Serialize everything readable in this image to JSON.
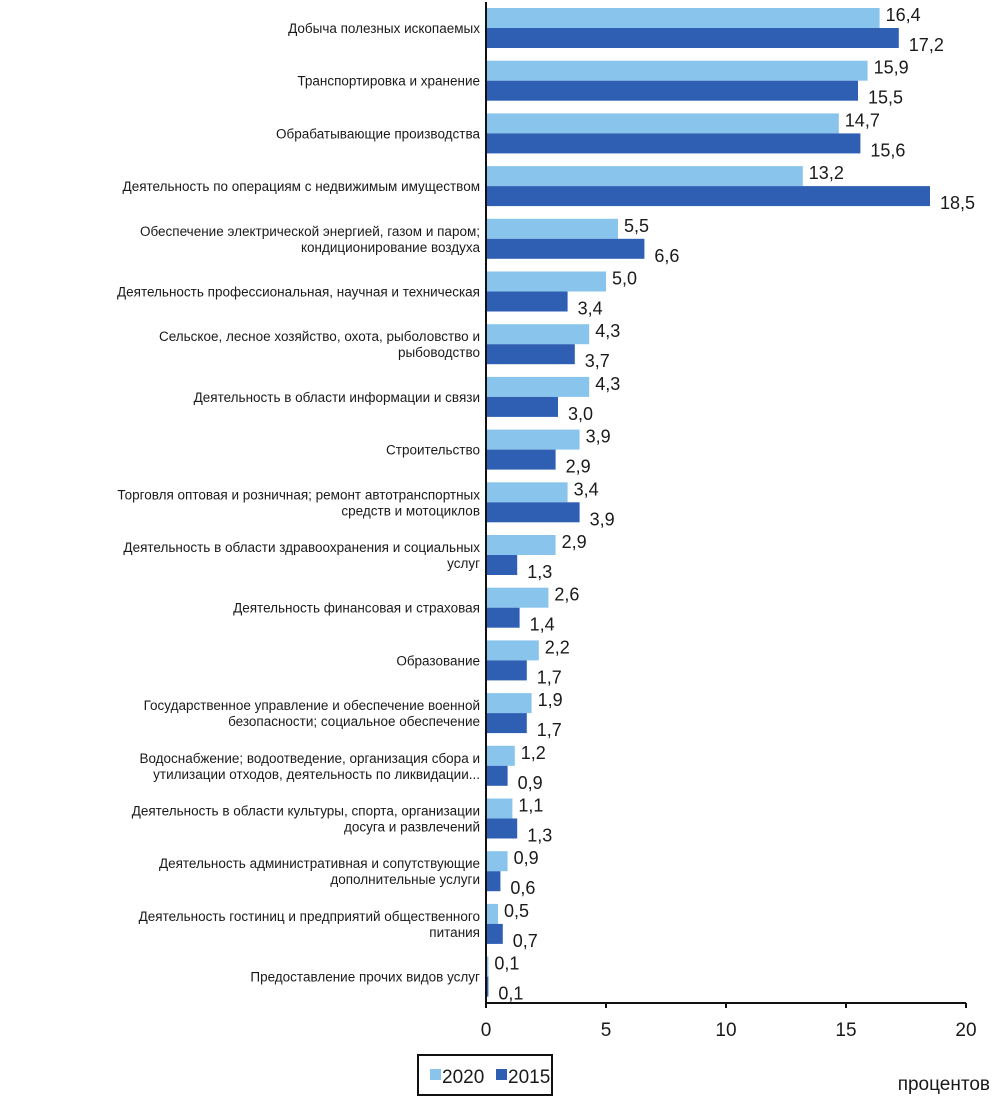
{
  "chart_data": {
    "type": "bar",
    "orientation": "horizontal",
    "categories": [
      [
        "Добыча полезных ископаемых"
      ],
      [
        "Транспортировка и хранение"
      ],
      [
        "Обрабатывающие производства"
      ],
      [
        "Деятельность по операциям с недвижимым имуществом"
      ],
      [
        "Обеспечение электрической энергией,  газом и паром;",
        "кондиционирование воздуха"
      ],
      [
        "Деятельность профессиональная,  научная и техническая"
      ],
      [
        "Сельское, лесное хозяйство, охота, рыболовство и",
        "рыбоводство"
      ],
      [
        "Деятельность в области информации и связи"
      ],
      [
        "Строительство"
      ],
      [
        "Торговля оптовая и розничная; ремонт автотранспортных",
        "средств и мотоциклов"
      ],
      [
        "Деятельность в области здравоохранения и социальных",
        "услуг"
      ],
      [
        "Деятельность финансовая и страховая"
      ],
      [
        "Образование"
      ],
      [
        "Государственное управление и обеспечение военной",
        "безопасности;  социальное обеспечение"
      ],
      [
        "Водоснабжение; водоотведение, организация сбора и",
        "утилизации отходов, деятельность по ликвидации..."
      ],
      [
        "Деятельность в области культуры, спорта, организации",
        "досуга и развлечений"
      ],
      [
        "Деятельность административная и сопутствующие",
        "дополнительные услуги"
      ],
      [
        "Деятельность гостиниц и предприятий общественного",
        "питания"
      ],
      [
        "Предоставление прочих видов услуг"
      ]
    ],
    "series": [
      {
        "name": "2020",
        "color": "#88c4ec",
        "values": [
          16.4,
          15.9,
          14.7,
          13.2,
          5.5,
          5.0,
          4.3,
          4.3,
          3.9,
          3.4,
          2.9,
          2.6,
          2.2,
          1.9,
          1.2,
          1.1,
          0.9,
          0.5,
          0.1
        ],
        "labels": [
          "16,4",
          "15,9",
          "14,7",
          "13,2",
          "5,5",
          "5,0",
          "4,3",
          "4,3",
          "3,9",
          "3,4",
          "2,9",
          "2,6",
          "2,2",
          "1,9",
          "1,2",
          "1,1",
          "0,9",
          "0,5",
          "0,1"
        ]
      },
      {
        "name": "2015",
        "color": "#2f5fb3",
        "values": [
          17.2,
          15.5,
          15.6,
          18.5,
          6.6,
          3.4,
          3.7,
          3.0,
          2.9,
          3.9,
          1.3,
          1.4,
          1.7,
          1.7,
          0.9,
          1.3,
          0.6,
          0.7,
          0.1
        ],
        "labels": [
          "17,2",
          "15,5",
          "15,6",
          "18,5",
          "6,6",
          "3,4",
          "3,7",
          "3,0",
          "2,9",
          "3,9",
          "1,3",
          "1,4",
          "1,7",
          "1,7",
          "0,9",
          "1,3",
          "0,6",
          "0,7",
          "0,1"
        ]
      }
    ],
    "xlim": [
      0,
      20
    ],
    "xticks": [
      "0",
      "5",
      "10",
      "15",
      "20"
    ],
    "xtick_values": [
      0,
      5,
      10,
      15,
      20
    ],
    "xlabel": "процентов",
    "legend_position": "bottom-left",
    "grid": false
  }
}
